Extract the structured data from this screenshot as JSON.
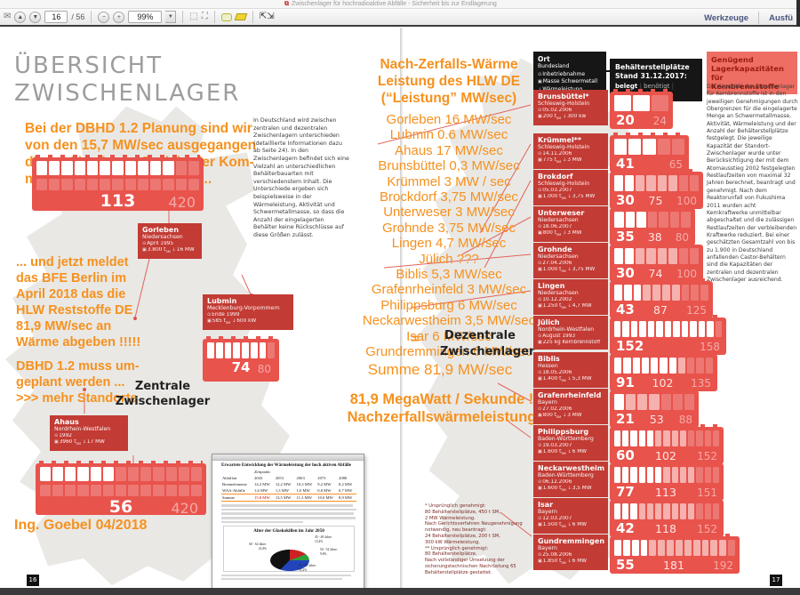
{
  "window": {
    "doc_title": "Zwischenlager für hochradioaktive Abfälle - Sicherheit bis zur Endlagerung",
    "pdf_badge": "PDF",
    "toolbar": {
      "page_current": "16",
      "page_total": "/ 56",
      "zoom_level": "99%",
      "tools_label": "Werkzeuge",
      "fill_sign_label": "Ausfü"
    },
    "icons": {
      "envelope": "✉",
      "page_up": "▲",
      "page_down": "▼",
      "zoom_out": "−",
      "zoom_in": "+",
      "dropdown": "▼",
      "fullscreen": "⇱⇲"
    }
  },
  "left_page": {
    "page_number": "16",
    "title": "ÜBERSICHT\nZWISCHENLAGER",
    "para1": "Bei der DBHD 1.2 Planung sind wir\nvon den 15,7 MW/sec ausgegangen\ndie im Abschluss-Bericht der Kom-\nmission Endlager standen ...",
    "para2": "... und jetzt meldet\ndas BFE Berlin im\nApril 2018 das die\nHLW Reststoffe DE\n81,9 MW/sec an\nWärme abgeben !!!!!",
    "para3": "DBHD 1.2 muss um-\ngeplant werden ...\n>>> mehr Standorte",
    "intro_text": "In Deutschland wird zwischen zentralen und dezentralen Zwischenlagern unterschieden (detaillierte Informationen dazu ab Seite 24). In den Zwischenlagern befindet sich eine Vielzahl an unterschiedlichen Behälterbauarten mit verschiedenstem Inhalt. Die Unterschiede ergeben sich beispielsweise in der Wärmeleistung, Aktivität und Schwermetallmasse, so dass die Anzahl der eingelagerten Behälter keine Rückschlüsse auf diese Größen zulässt.",
    "zentrale_label": "Zentrale\nZwischenlager",
    "signature": "Ing. Goebel 04/2018",
    "stations": [
      {
        "name": "Gorleben",
        "state": "Niedersachsen",
        "date": "April 1995",
        "mass": "3.800 t",
        "mass_sub": "SM",
        "power": "16 MW",
        "belegt": "113",
        "genehmigt": "420"
      },
      {
        "name": "Lubmin",
        "state": "Mecklenburg-Vorpommern",
        "date": "Ende 1999",
        "mass": "585 t",
        "mass_sub": "SM",
        "power": "600 kW",
        "belegt": "74",
        "genehmigt": "80"
      },
      {
        "name": "Ahaus",
        "state": "Nordrhein-Westfalen",
        "date": "1992",
        "mass": "3960 t",
        "mass_sub": "SM",
        "power": "17 MW",
        "belegt": "56",
        "genehmigt": "420"
      }
    ],
    "inset_doc": {
      "title": "Erwartete Entwicklung der Wärmeleistung der hoch aktiven Abfälle",
      "zeitpunkt_label": "Zeitpunkt:",
      "col_label": "Abfallart",
      "years": [
        "2043",
        "2053",
        "2063",
        "2073",
        "2080"
      ],
      "rows": [
        {
          "label": "Brennelemente",
          "values": [
            "14,2 MW",
            "12,2 MW",
            "10,3 MW",
            "9,2 MW",
            "8,2 MW"
          ]
        },
        {
          "label": "WAA-Abfälle",
          "values": [
            "1,6 MW",
            "1,3 MW",
            "1,0 MW",
            "0,8 MW",
            "0,7 MW"
          ]
        },
        {
          "label": "Summe",
          "values": [
            "15,8 MW",
            "13,5 MW",
            "11,3 MW",
            "10,0 MW",
            "8,9 MW"
          ]
        }
      ],
      "pie_title": "Alter der Glaskokillen im Jahr 2050",
      "pie_slices": [
        {
          "label": "45 - 49 Jahre:\n15,4%",
          "pct": 15.4,
          "color": "#cc2222"
        },
        {
          "label": "50 - 54 Jahre:\n9,6%",
          "pct": 9.6,
          "color": "#2e9e3a"
        },
        {
          "label": "55 - 59 Jahre:\n33,2%",
          "pct": 33.2,
          "color": "#2244bb"
        },
        {
          "label": "60 - 64 Jahre:\n41,8%",
          "pct": 41.8,
          "color": "#111111"
        }
      ]
    }
  },
  "center_overlay": {
    "heading": "Nach-Zerfalls-Wärme\nLeistung des HLW DE\n(“Leistung” MW/sec)",
    "list": "Gorleben 16 MW/sec\nLubmin 0.6 MW/sec\nAhaus 17 MW/sec\nBrunsbüttel 0,3 MW/sec\nKrümmel 3 MW / sec\nBrockdorf 3,75 MW/sec\nUnterweser 3 MW/sec\nGrohnde 3,75 MW/sec\nLingen 4,7 MW/sec\nJülich ???\nBiblis 5,3 MW/sec\nGrafenrheinfeld 3 MW/sec\nPhilippsburg 6 MW/sec\nNeckarwestheim 3,5 MW/sec\nIsar 6 MW/sec\nGrundremmingen 6 MW/sec",
    "equals": "=",
    "dezentrale_label": "Dezentrale\nZwischenlager",
    "summe": "Summe 81,9 MW/sec",
    "mega": "81,9 MegaWatt / Sekunde !\nNachzerfallswärmeleistung"
  },
  "right_page": {
    "page_number": "17",
    "legend": {
      "ort": "Ort",
      "bundesland": "Bundesland",
      "inbetriebnahme": "Inbetriebnahme",
      "masse": "Masse Schwermetall",
      "waerme": "Wärmeleistung"
    },
    "stand_box": {
      "line1": "Behälterstellplätze",
      "line2": "Stand 31.12.2017:",
      "v1": "belegt",
      "v2": "benötigt",
      "v3": "genehmigt"
    },
    "capacity_heading": "Genügend\nLagerkapazitäten für\nKernbrennstoffe",
    "capacity_text": "Die Kapazität der Zwischenlager für Kernbrennstoffe ist in den jeweiligen Genehmigungen durch Obergrenzen für die eingelagerte Menge an Schwermetallmasse, Aktivität, Wärmeleistung und der Anzahl der Behälterstellplätze festgelegt. Die jeweilige Kapazität der Standort-Zwischenlager wurde unter Berücksichtigung der mit dem Atomausstieg 2002 festgelegten Restlaufzeiten von maximal 32 Jahren berechnet, beantragt und genehmigt. Nach dem Reaktorunfall von Fukushima 2011 wurden acht Kernkraftwerke unmittelbar abgeschaltet und die zulässigen Restlaufzeiten der verbleibenden Kraftwerke reduziert. Bei einer geschätzten Gesamtzahl von bis zu 1.900 in Deutschland anfallenden Castor-Behältern sind die Kapazitäten der zentralen und dezentralen Zwischenlager ausreichend.",
    "footnotes": "* Ursprünglich genehmigt:\n80 Behälterstellplätze, 450 t SM,\n2 MW Wärmeleistung.\nNach Gerichtsverfahren Neugenehmigung\nnotwendig, neu beantragt:\n24 Behälterstellplätze, 200 t SM,\n300 kW Wärmeleistung.\n** Ursprünglich genehmigt:\n80 Behälterstellplätze.\nNach vollständiger Umsetzung der\nsicherungstechnischen Nachrüstung 65\nBehälterstellplätze gestattet.",
    "entries": [
      {
        "name": "Brunsbüttel*",
        "state": "Schleswig-Holstein",
        "date": "05.02.2006",
        "mass": "200 t",
        "mass_sub": "SM",
        "power": "300 kw",
        "belegt": 20,
        "benoetigt": null,
        "genehmigt": 24
      },
      {
        "name": "Krümmel**",
        "state": "Schleswig-Holstein",
        "date": "14.11.2006",
        "mass": "775 t",
        "mass_sub": "SM",
        "power": "3 MW",
        "belegt": 41,
        "benoetigt": null,
        "genehmigt": 65
      },
      {
        "name": "Brokdorf",
        "state": "Schleswig-Holstein",
        "date": "05.03.2007",
        "mass": "1.000 t",
        "mass_sub": "SM",
        "power": "3,75 MW",
        "belegt": 30,
        "benoetigt": 75,
        "genehmigt": 100
      },
      {
        "name": "Unterweser",
        "state": "Niedersachsen",
        "date": "18.06.2007",
        "mass": "800 t",
        "mass_sub": "SM",
        "power": "3 MW",
        "belegt": 35,
        "benoetigt": 38,
        "genehmigt": 80
      },
      {
        "name": "Grohnde",
        "state": "Niedersachsen",
        "date": "27.04.2006",
        "mass": "1.000 t",
        "mass_sub": "SM",
        "power": "3,75 MW",
        "belegt": 30,
        "benoetigt": 74,
        "genehmigt": 100
      },
      {
        "name": "Lingen",
        "state": "Niedersachsen",
        "date": "10.12.2002",
        "mass": "1.250 t",
        "mass_sub": "SM",
        "power": "4,7 MW",
        "belegt": 43,
        "benoetigt": 87,
        "genehmigt": 125
      },
      {
        "name": "Jülich",
        "state": "Nordrhein-Westfalen",
        "date": "August 1993",
        "mass": "225 kg Kernbrennstoff",
        "mass_sub": "",
        "power": "",
        "belegt": 152,
        "benoetigt": null,
        "genehmigt": 158
      },
      {
        "name": "Biblis",
        "state": "Hessen",
        "date": "18.05.2006",
        "mass": "1.400 t",
        "mass_sub": "SM",
        "power": "5,3 MW",
        "belegt": 91,
        "benoetigt": 102,
        "genehmigt": 135
      },
      {
        "name": "Grafenrheinfeld",
        "state": "Bayern",
        "date": "27.02.2006",
        "mass": "800 t",
        "mass_sub": "SM",
        "power": "3 MW",
        "belegt": 21,
        "benoetigt": 53,
        "genehmigt": 88
      },
      {
        "name": "Philippsburg",
        "state": "Baden-Württemberg",
        "date": "19.03.2007",
        "mass": "1.600 t",
        "mass_sub": "SM",
        "power": "6 MW",
        "belegt": 60,
        "benoetigt": 102,
        "genehmigt": 152
      },
      {
        "name": "Neckarwestheim",
        "state": "Baden-Württemberg",
        "date": "06.12.2006",
        "mass": "1.600 t",
        "mass_sub": "SM",
        "power": "3,5 MW",
        "belegt": 77,
        "benoetigt": 113,
        "genehmigt": 151
      },
      {
        "name": "Isar",
        "state": "Bayern",
        "date": "12.03.2007",
        "mass": "1.500 t",
        "mass_sub": "SM",
        "power": "6 MW",
        "belegt": 42,
        "benoetigt": 118,
        "genehmigt": 152
      },
      {
        "name": "Gundremmingen",
        "state": "Bayern",
        "date": "25.08.2006",
        "mass": "1.850 t",
        "mass_sub": "SM",
        "power": "6 MW",
        "belegt": 55,
        "benoetigt": 181,
        "genehmigt": 192
      }
    ]
  },
  "colors": {
    "chart_red": "#e8534c",
    "box_red": "#c23b34",
    "orange": "#f6911e",
    "map_gray": "#e9e8e5",
    "black_box": "#161616"
  }
}
